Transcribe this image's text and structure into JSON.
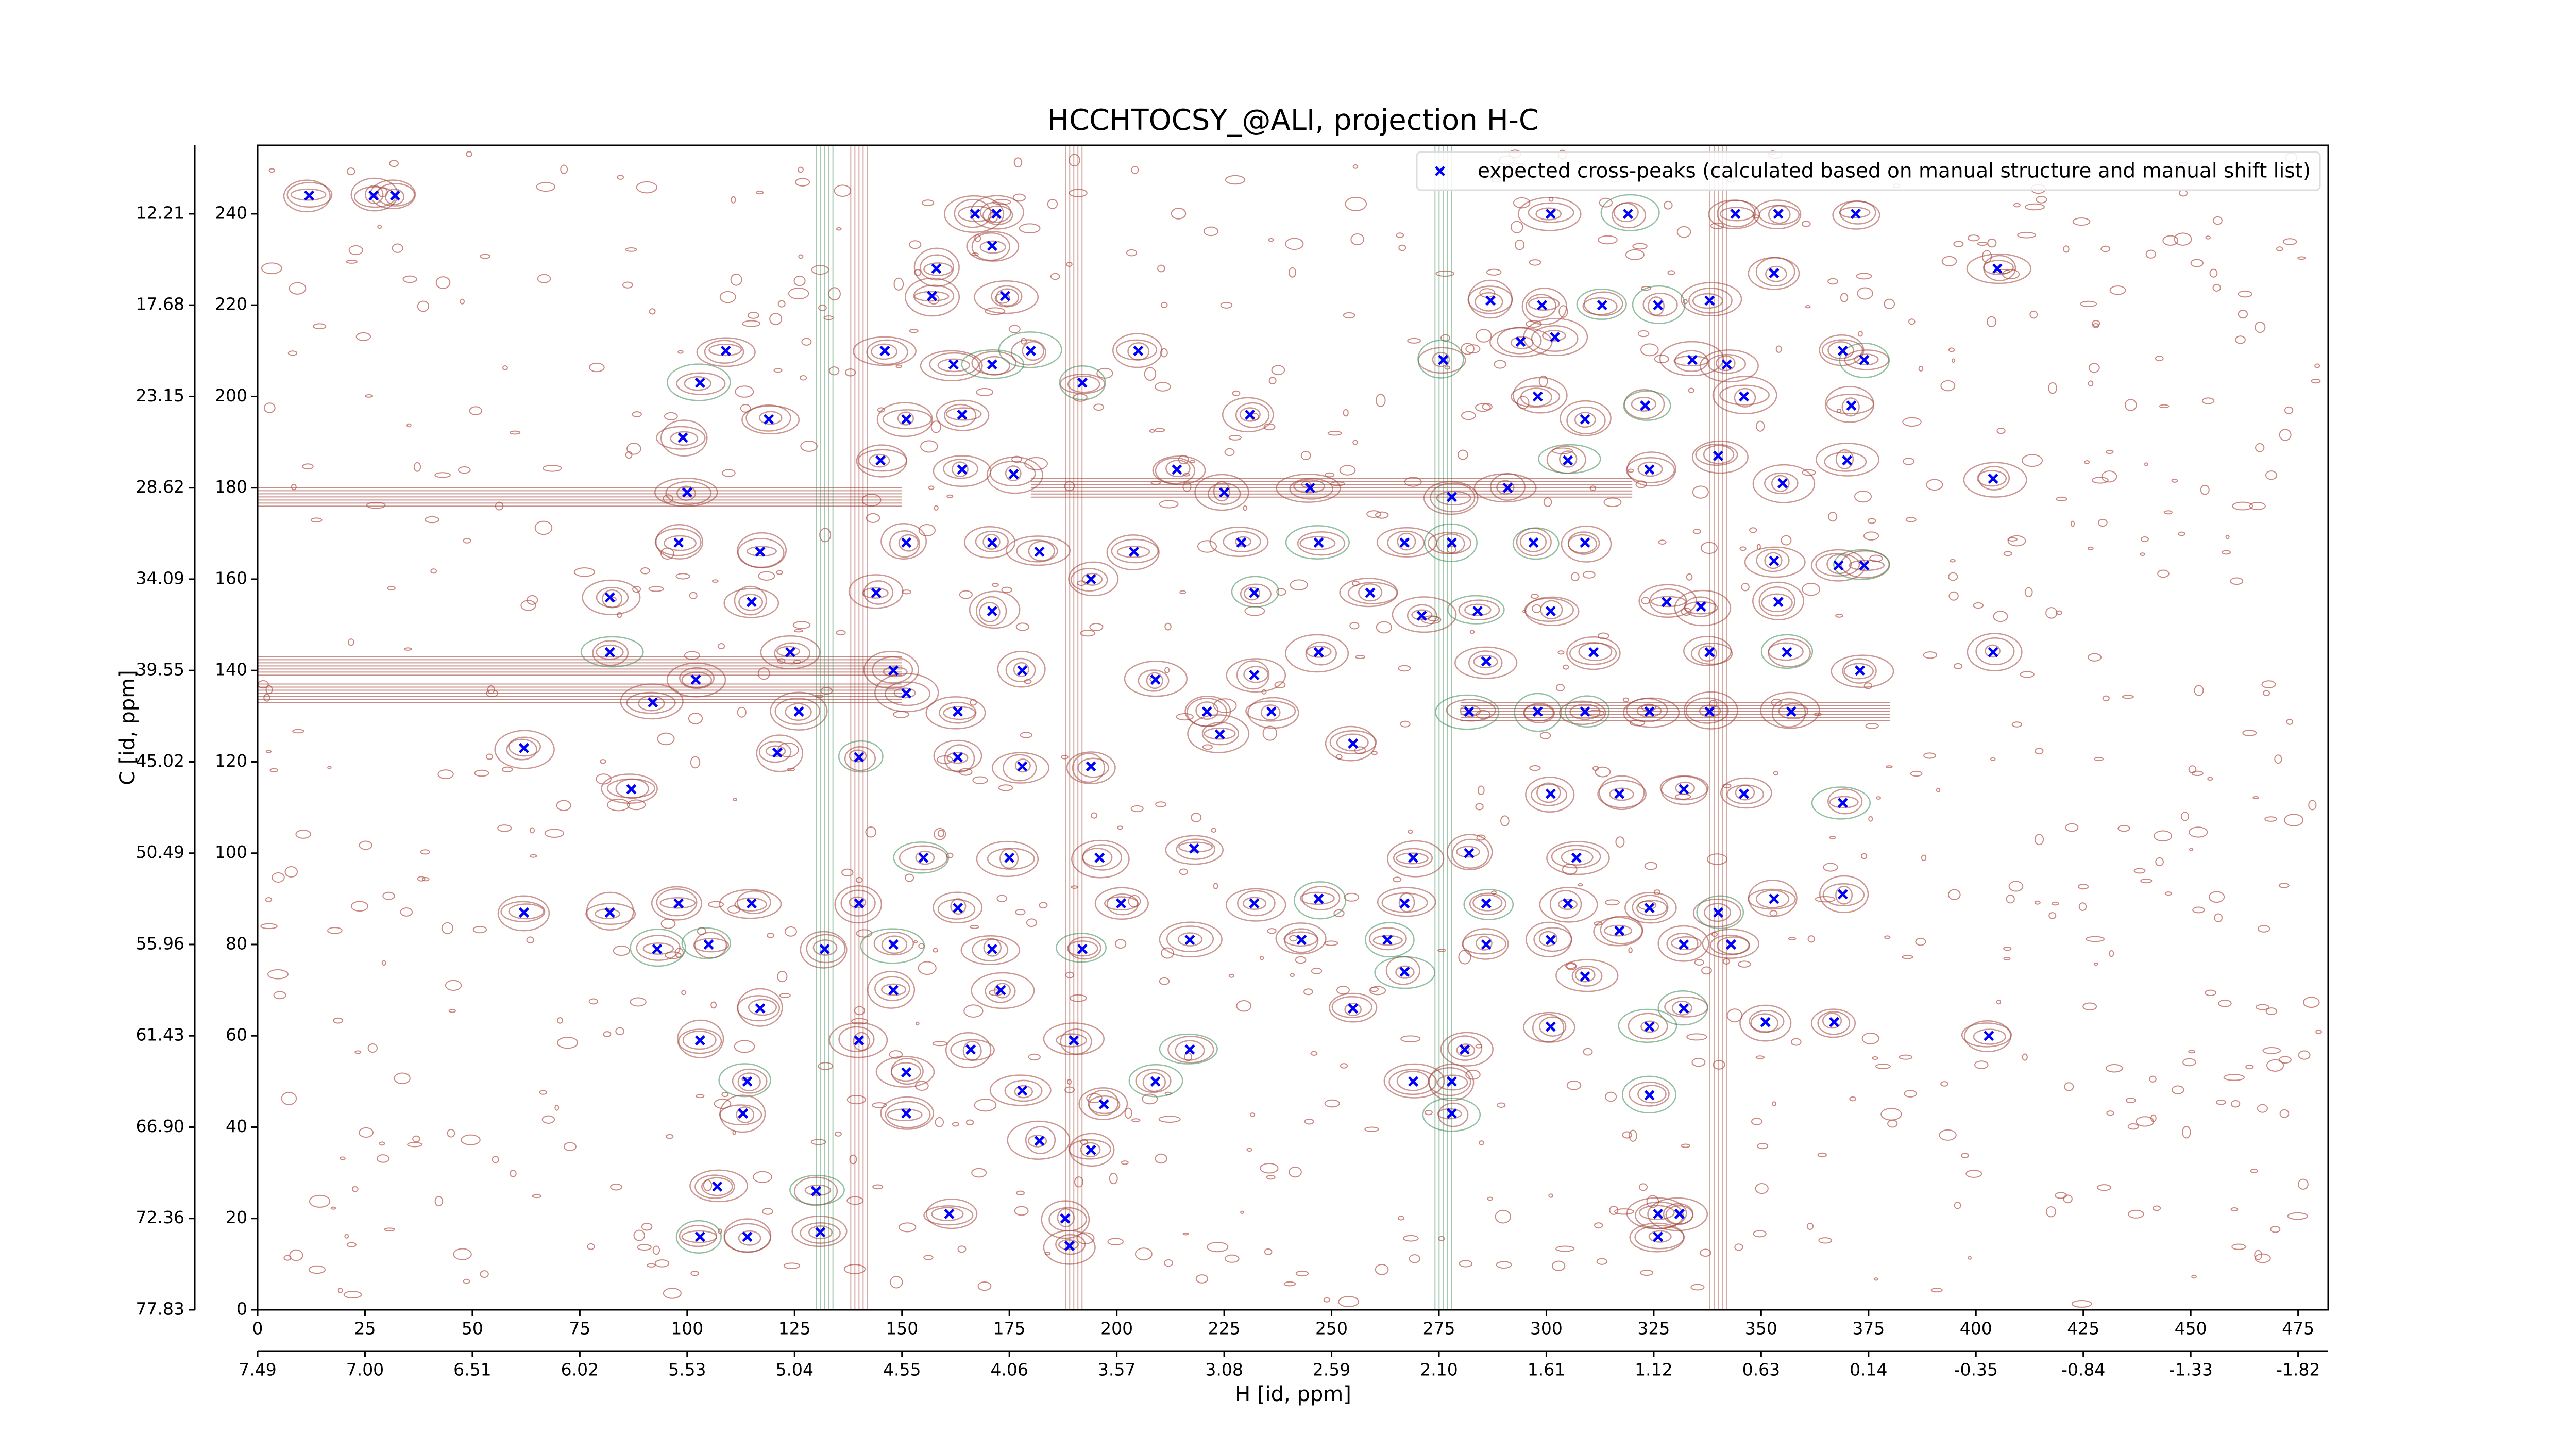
{
  "chart_data": {
    "type": "scatter",
    "title": "HCCHTOCSY_@ALI, projection H-C",
    "xlabel": "H [id, ppm]",
    "ylabel": "C [id, ppm]",
    "xlim": [
      0,
      482
    ],
    "ylim": [
      0,
      255
    ],
    "xticks": [
      0,
      25,
      50,
      75,
      100,
      125,
      150,
      175,
      200,
      225,
      250,
      275,
      300,
      325,
      350,
      375,
      400,
      425,
      450,
      475
    ],
    "yticks": [
      0,
      20,
      40,
      60,
      80,
      100,
      120,
      140,
      160,
      180,
      200,
      220,
      240
    ],
    "x2ticks": [
      {
        "value": 0,
        "label": "7.49"
      },
      {
        "value": 25,
        "label": "7.00"
      },
      {
        "value": 50,
        "label": "6.51"
      },
      {
        "value": 75,
        "label": "6.02"
      },
      {
        "value": 100,
        "label": "5.53"
      },
      {
        "value": 125,
        "label": "5.04"
      },
      {
        "value": 150,
        "label": "4.55"
      },
      {
        "value": 175,
        "label": "4.06"
      },
      {
        "value": 200,
        "label": "3.57"
      },
      {
        "value": 225,
        "label": "3.08"
      },
      {
        "value": 250,
        "label": "2.59"
      },
      {
        "value": 275,
        "label": "2.10"
      },
      {
        "value": 300,
        "label": "1.61"
      },
      {
        "value": 325,
        "label": "1.12"
      },
      {
        "value": 350,
        "label": "0.63"
      },
      {
        "value": 375,
        "label": "0.14"
      },
      {
        "value": 400,
        "label": "-0.35"
      },
      {
        "value": 425,
        "label": "-0.84"
      },
      {
        "value": 450,
        "label": "-1.33"
      },
      {
        "value": 475,
        "label": "-1.82"
      }
    ],
    "y2ticks": [
      {
        "value": 0,
        "label": "77.83"
      },
      {
        "value": 20,
        "label": "72.36"
      },
      {
        "value": 40,
        "label": "66.90"
      },
      {
        "value": 60,
        "label": "61.43"
      },
      {
        "value": 80,
        "label": "55.96"
      },
      {
        "value": 100,
        "label": "50.49"
      },
      {
        "value": 120,
        "label": "45.02"
      },
      {
        "value": 140,
        "label": "39.55"
      },
      {
        "value": 160,
        "label": "34.09"
      },
      {
        "value": 180,
        "label": "28.62"
      },
      {
        "value": 200,
        "label": "23.15"
      },
      {
        "value": 220,
        "label": "17.68"
      },
      {
        "value": 240,
        "label": "12.21"
      }
    ],
    "legend": "upper right",
    "series": [
      {
        "name": "expected cross-peaks (calculated based on manual structure and manual shift list)",
        "color": "#0000ff",
        "x": [
          167,
          172,
          171,
          158,
          157,
          174,
          301,
          319,
          344,
          354,
          372,
          287,
          299,
          313,
          326,
          338,
          353,
          405,
          276,
          294,
          302,
          334,
          342,
          369,
          374,
          103,
          109,
          146,
          162,
          171,
          180,
          192,
          205,
          99,
          119,
          151,
          164,
          231,
          298,
          309,
          323,
          346,
          371,
          100,
          145,
          164,
          176,
          214,
          225,
          245,
          278,
          291,
          305,
          324,
          340,
          355,
          370,
          404,
          98,
          117,
          151,
          171,
          182,
          204,
          229,
          247,
          267,
          278,
          297,
          309,
          353,
          368,
          374,
          82,
          115,
          144,
          171,
          194,
          232,
          259,
          271,
          284,
          301,
          328,
          336,
          354,
          82,
          102,
          124,
          148,
          178,
          209,
          232,
          247,
          286,
          311,
          338,
          356,
          373,
          404,
          92,
          126,
          151,
          163,
          221,
          236,
          282,
          298,
          309,
          324,
          338,
          357,
          62,
          121,
          140,
          163,
          178,
          194,
          224,
          255,
          332,
          346,
          369,
          87,
          301,
          317,
          175,
          196,
          218,
          269,
          282,
          307,
          155,
          62,
          82,
          98,
          115,
          140,
          163,
          201,
          232,
          247,
          267,
          286,
          305,
          324,
          340,
          353,
          369,
          93,
          105,
          132,
          148,
          171,
          192,
          217,
          243,
          263,
          286,
          301,
          317,
          332,
          343,
          148,
          173,
          267,
          309,
          103,
          117,
          140,
          166,
          190,
          217,
          255,
          281,
          301,
          324,
          332,
          351,
          367,
          403,
          114,
          151,
          178,
          197,
          209,
          269,
          278,
          324,
          113,
          151,
          194,
          182,
          278,
          107,
          130,
          161,
          188,
          326,
          331,
          103,
          114,
          131,
          189,
          326,
          12,
          27,
          32
        ],
        "values": [
          240,
          240,
          233,
          228,
          222,
          222,
          240,
          240,
          240,
          240,
          240,
          221,
          220,
          220,
          220,
          221,
          227,
          228,
          208,
          212,
          213,
          208,
          207,
          210,
          208,
          203,
          210,
          210,
          207,
          207,
          210,
          203,
          210,
          191,
          195,
          195,
          196,
          196,
          200,
          195,
          198,
          200,
          198,
          179,
          186,
          184,
          183,
          184,
          179,
          180,
          178,
          180,
          186,
          184,
          187,
          181,
          186,
          182,
          168,
          166,
          168,
          168,
          166,
          166,
          168,
          168,
          168,
          168,
          168,
          168,
          164,
          163,
          163,
          156,
          155,
          157,
          153,
          160,
          157,
          157,
          152,
          153,
          153,
          155,
          154,
          155,
          144,
          138,
          144,
          140,
          140,
          138,
          139,
          144,
          142,
          144,
          144,
          144,
          140,
          144,
          133,
          131,
          135,
          131,
          131,
          131,
          131,
          131,
          131,
          131,
          131,
          131,
          123,
          122,
          121,
          121,
          119,
          119,
          126,
          124,
          114,
          113,
          111,
          114,
          113,
          113,
          99,
          99,
          101,
          99,
          100,
          99,
          99,
          87,
          87,
          89,
          89,
          89,
          88,
          89,
          89,
          90,
          89,
          89,
          89,
          88,
          87,
          90,
          91,
          79,
          80,
          79,
          80,
          79,
          79,
          81,
          81,
          81,
          80,
          81,
          83,
          80,
          80,
          70,
          70,
          74,
          73,
          59,
          66,
          59,
          57,
          59,
          57,
          66,
          57,
          62,
          62,
          66,
          63,
          63,
          60,
          50,
          52,
          48,
          45,
          50,
          50,
          50,
          47,
          43,
          43,
          35,
          37,
          43,
          27,
          26,
          21,
          20,
          21,
          21,
          16,
          16,
          17,
          14,
          16,
          244,
          244,
          244
        ]
      }
    ]
  }
}
